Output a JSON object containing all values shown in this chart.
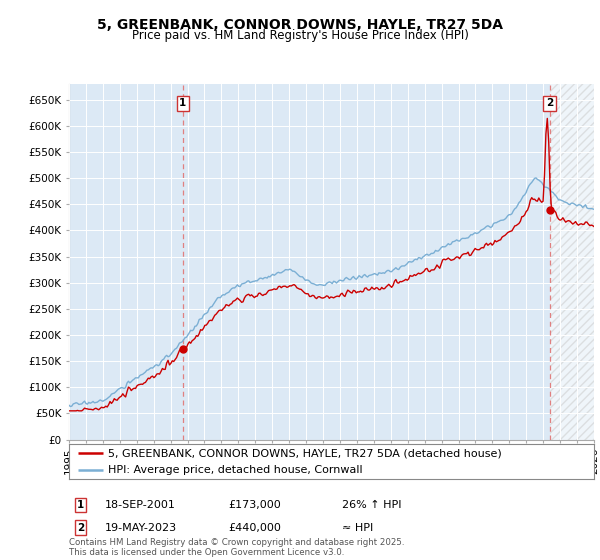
{
  "title": "5, GREENBANK, CONNOR DOWNS, HAYLE, TR27 5DA",
  "subtitle": "Price paid vs. HM Land Registry's House Price Index (HPI)",
  "ylim": [
    0,
    680000
  ],
  "yticks": [
    0,
    50000,
    100000,
    150000,
    200000,
    250000,
    300000,
    350000,
    400000,
    450000,
    500000,
    550000,
    600000,
    650000
  ],
  "ytick_labels": [
    "£0",
    "£50K",
    "£100K",
    "£150K",
    "£200K",
    "£250K",
    "£300K",
    "£350K",
    "£400K",
    "£450K",
    "£500K",
    "£550K",
    "£600K",
    "£650K"
  ],
  "background_color": "#ffffff",
  "plot_bg_color": "#dce9f5",
  "grid_color": "#ffffff",
  "line1_color": "#cc0000",
  "line2_color": "#7bafd4",
  "vline_color": "#e08080",
  "marker1_x": 2001.72,
  "marker1_y": 173000,
  "marker2_x": 2023.38,
  "marker2_y": 440000,
  "legend_line1": "5, GREENBANK, CONNOR DOWNS, HAYLE, TR27 5DA (detached house)",
  "legend_line2": "HPI: Average price, detached house, Cornwall",
  "annotation1_date": "18-SEP-2001",
  "annotation1_price": "£173,000",
  "annotation1_hpi": "26% ↑ HPI",
  "annotation2_date": "19-MAY-2023",
  "annotation2_price": "£440,000",
  "annotation2_hpi": "≈ HPI",
  "footer": "Contains HM Land Registry data © Crown copyright and database right 2025.\nThis data is licensed under the Open Government Licence v3.0.",
  "xmin": 1995.0,
  "xmax": 2026.0,
  "title_fontsize": 10,
  "subtitle_fontsize": 8.5,
  "tick_fontsize": 7.5,
  "legend_fontsize": 8,
  "annotation_fontsize": 8
}
